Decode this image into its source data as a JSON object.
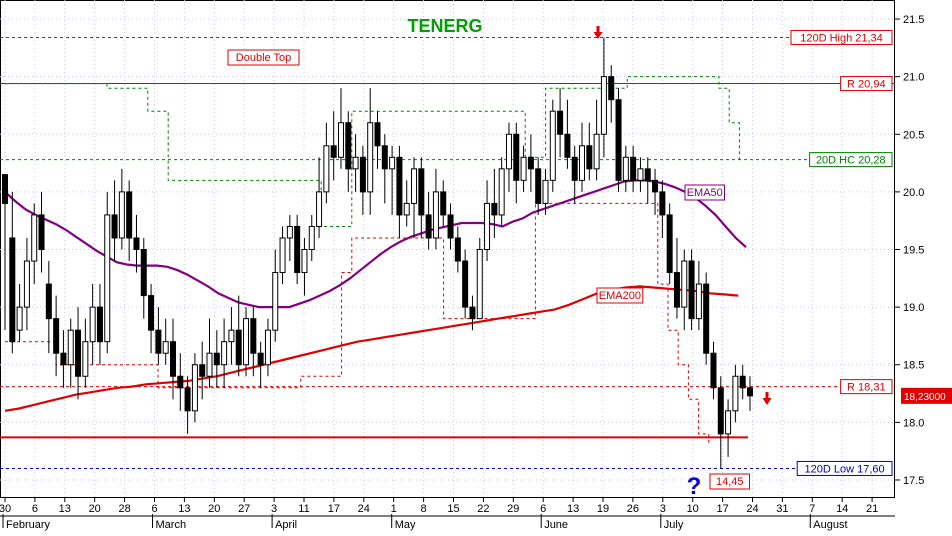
{
  "chart_data": {
    "type": "candlestick",
    "title": "TENERG",
    "ylim": [
      17.4,
      21.6
    ],
    "ytick_labels": [
      "17.5",
      "18.0",
      "18.5",
      "19.0",
      "19.5",
      "20.0",
      "20.5",
      "21.0",
      "21.5"
    ],
    "yticks": [
      17.5,
      18.0,
      18.5,
      19.0,
      19.5,
      20.0,
      20.5,
      21.0,
      21.5
    ],
    "x_day_labels": [
      "30",
      "6",
      "13",
      "20",
      "28",
      "6",
      "13",
      "20",
      "27",
      "3",
      "11",
      "17",
      "24",
      "1",
      "8",
      "15",
      "22",
      "29",
      "6",
      "13",
      "19",
      "26",
      "3",
      "10",
      "17",
      "24",
      "31",
      "7",
      "14",
      "21"
    ],
    "month_labels": [
      "February",
      "March",
      "April",
      "May",
      "June",
      "July",
      "August"
    ],
    "last_price_label": "18,23000",
    "candles": [
      [
        20.15,
        19.9,
        20.1,
        18.8
      ],
      [
        19.6,
        18.7,
        20.0,
        18.6
      ],
      [
        18.8,
        19.0,
        19.2,
        18.7
      ],
      [
        19.0,
        19.4,
        19.6,
        18.8
      ],
      [
        19.4,
        19.8,
        19.9,
        19.2
      ],
      [
        19.8,
        19.5,
        20.0,
        19.3
      ],
      [
        19.2,
        18.9,
        19.4,
        18.6
      ],
      [
        18.9,
        18.6,
        19.1,
        18.4
      ],
      [
        18.6,
        18.5,
        18.8,
        18.3
      ],
      [
        18.5,
        18.8,
        18.9,
        18.3
      ],
      [
        18.8,
        18.4,
        19.0,
        18.2
      ],
      [
        18.4,
        18.7,
        18.9,
        18.3
      ],
      [
        18.7,
        19.0,
        19.2,
        18.5
      ],
      [
        19.0,
        18.7,
        19.2,
        18.5
      ],
      [
        18.7,
        19.8,
        20.0,
        18.6
      ],
      [
        19.8,
        19.6,
        20.1,
        19.4
      ],
      [
        19.6,
        20.0,
        20.2,
        19.5
      ],
      [
        20.0,
        19.6,
        20.1,
        19.4
      ],
      [
        19.6,
        19.5,
        19.8,
        19.3
      ],
      [
        19.5,
        19.1,
        19.6,
        18.9
      ],
      [
        19.1,
        18.8,
        19.2,
        18.6
      ],
      [
        18.8,
        18.6,
        19.0,
        18.5
      ],
      [
        18.6,
        18.7,
        18.9,
        18.5
      ],
      [
        18.7,
        18.4,
        18.9,
        18.2
      ],
      [
        18.4,
        18.3,
        18.6,
        18.1
      ],
      [
        18.3,
        18.1,
        18.4,
        17.9
      ],
      [
        18.1,
        18.5,
        18.6,
        18.0
      ],
      [
        18.5,
        18.4,
        18.7,
        18.2
      ],
      [
        18.4,
        18.6,
        18.9,
        18.3
      ],
      [
        18.6,
        18.5,
        18.8,
        18.3
      ],
      [
        18.5,
        18.7,
        18.9,
        18.3
      ],
      [
        18.7,
        18.8,
        19.0,
        18.5
      ],
      [
        18.8,
        18.5,
        19.1,
        18.4
      ],
      [
        18.5,
        18.9,
        19.0,
        18.4
      ],
      [
        18.9,
        18.6,
        19.0,
        18.4
      ],
      [
        18.6,
        18.5,
        18.7,
        18.3
      ],
      [
        18.5,
        18.8,
        18.9,
        18.4
      ],
      [
        18.8,
        19.3,
        19.5,
        18.7
      ],
      [
        19.3,
        19.6,
        19.7,
        19.2
      ],
      [
        19.6,
        19.7,
        19.8,
        19.4
      ],
      [
        19.7,
        19.3,
        19.8,
        19.2
      ],
      [
        19.3,
        19.5,
        19.6,
        19.1
      ],
      [
        19.5,
        19.7,
        19.8,
        19.4
      ],
      [
        19.7,
        20.0,
        20.3,
        19.6
      ],
      [
        20.0,
        20.4,
        20.6,
        19.9
      ],
      [
        20.4,
        20.3,
        20.7,
        20.1
      ],
      [
        20.3,
        20.6,
        20.9,
        20.2
      ],
      [
        20.6,
        20.2,
        20.7,
        20.0
      ],
      [
        20.2,
        20.3,
        20.5,
        20.0
      ],
      [
        20.3,
        20.0,
        20.4,
        19.8
      ],
      [
        20.0,
        20.6,
        20.9,
        19.8
      ],
      [
        20.6,
        20.4,
        20.7,
        20.2
      ],
      [
        20.4,
        20.2,
        20.5,
        19.9
      ],
      [
        20.2,
        20.3,
        20.4,
        19.8
      ],
      [
        20.3,
        19.8,
        20.4,
        19.6
      ],
      [
        19.8,
        19.9,
        20.1,
        19.7
      ],
      [
        19.9,
        20.2,
        20.3,
        19.6
      ],
      [
        20.2,
        19.8,
        20.3,
        19.6
      ],
      [
        19.8,
        19.6,
        20.0,
        19.5
      ],
      [
        19.6,
        20.0,
        20.2,
        19.5
      ],
      [
        20.0,
        19.8,
        20.1,
        19.7
      ],
      [
        19.8,
        19.6,
        19.9,
        19.5
      ],
      [
        19.6,
        19.4,
        19.7,
        19.3
      ],
      [
        19.4,
        19.0,
        19.5,
        18.9
      ],
      [
        19.0,
        18.9,
        19.1,
        18.8
      ],
      [
        18.9,
        19.5,
        19.6,
        18.9
      ],
      [
        19.5,
        19.9,
        20.1,
        19.4
      ],
      [
        19.9,
        19.8,
        20.2,
        19.6
      ],
      [
        19.8,
        20.2,
        20.3,
        19.7
      ],
      [
        20.2,
        20.5,
        20.6,
        20.0
      ],
      [
        20.5,
        20.1,
        20.6,
        19.9
      ],
      [
        20.1,
        20.3,
        20.4,
        20.0
      ],
      [
        20.3,
        20.2,
        20.5,
        20.0
      ],
      [
        20.2,
        19.9,
        20.3,
        19.8
      ],
      [
        19.9,
        20.1,
        20.2,
        19.8
      ],
      [
        20.1,
        20.7,
        20.8,
        20.0
      ],
      [
        20.7,
        20.5,
        20.9,
        20.3
      ],
      [
        20.5,
        20.3,
        20.8,
        20.2
      ],
      [
        20.3,
        20.1,
        20.4,
        19.9
      ],
      [
        20.1,
        20.4,
        20.6,
        20.0
      ],
      [
        20.4,
        20.2,
        20.6,
        20.1
      ],
      [
        20.2,
        20.5,
        20.8,
        20.1
      ],
      [
        20.5,
        21.0,
        21.34,
        20.3
      ],
      [
        21.0,
        20.8,
        21.1,
        20.6
      ],
      [
        20.8,
        20.1,
        20.9,
        20.0
      ],
      [
        20.1,
        20.3,
        20.4,
        20.0
      ],
      [
        20.3,
        20.1,
        20.4,
        20.0
      ],
      [
        20.1,
        20.2,
        20.3,
        20.0
      ],
      [
        20.2,
        20.1,
        20.3,
        19.9
      ],
      [
        20.1,
        20.0,
        20.2,
        19.8
      ],
      [
        20.0,
        19.8,
        20.1,
        19.6
      ],
      [
        19.8,
        19.3,
        19.9,
        19.2
      ],
      [
        19.3,
        19.0,
        19.6,
        18.9
      ],
      [
        19.0,
        19.4,
        19.5,
        18.8
      ],
      [
        19.4,
        18.9,
        19.5,
        18.8
      ],
      [
        18.9,
        19.2,
        19.4,
        18.8
      ],
      [
        19.2,
        18.6,
        19.3,
        18.5
      ],
      [
        18.6,
        18.3,
        18.7,
        18.2
      ],
      [
        18.3,
        17.9,
        18.4,
        17.6
      ],
      [
        17.9,
        18.1,
        18.2,
        17.7
      ],
      [
        18.1,
        18.4,
        18.5,
        18.0
      ],
      [
        18.4,
        18.3,
        18.5,
        18.2
      ],
      [
        18.3,
        18.23,
        18.4,
        18.1
      ]
    ],
    "series": [
      {
        "name": "EMA50",
        "color": "#800080",
        "y": [
          20.0,
          19.92,
          19.85,
          19.8,
          19.76,
          19.72,
          19.67,
          19.61,
          19.55,
          19.49,
          19.44,
          19.39,
          19.37,
          19.36,
          19.36,
          19.36,
          19.35,
          19.32,
          19.28,
          19.23,
          19.18,
          19.12,
          19.08,
          19.04,
          19.02,
          19.0,
          19.0,
          19.0,
          19.0,
          19.03,
          19.06,
          19.1,
          19.14,
          19.19,
          19.25,
          19.32,
          19.39,
          19.46,
          19.52,
          19.57,
          19.61,
          19.64,
          19.67,
          19.69,
          19.71,
          19.73,
          19.73,
          19.73,
          19.72,
          19.7,
          19.74,
          19.77,
          19.82,
          19.85,
          19.88,
          19.91,
          19.94,
          19.97,
          20.0,
          20.03,
          20.06,
          20.09,
          20.1,
          20.1,
          20.09,
          20.07,
          20.04,
          20.0,
          19.95,
          19.88,
          19.8,
          19.7,
          19.6,
          19.52
        ]
      },
      {
        "name": "EMA200",
        "color": "#e00000",
        "y": [
          18.1,
          18.12,
          18.15,
          18.18,
          18.21,
          18.24,
          18.26,
          18.28,
          18.3,
          18.31,
          18.33,
          18.34,
          18.35,
          18.36,
          18.38,
          18.4,
          18.43,
          18.46,
          18.49,
          18.52,
          18.55,
          18.58,
          18.61,
          18.64,
          18.67,
          18.7,
          18.72,
          18.74,
          18.76,
          18.78,
          18.8,
          18.82,
          18.84,
          18.86,
          18.88,
          18.9,
          18.92,
          18.94,
          18.96,
          18.98,
          19.02,
          19.07,
          19.12,
          19.15,
          19.17,
          19.18,
          19.17,
          19.16,
          19.15,
          19.14,
          19.12,
          19.11,
          19.1
        ]
      },
      {
        "name": "green-highest",
        "color": "#008000",
        "y": [
          20.94,
          20.94,
          20.94,
          20.94,
          20.94,
          20.94,
          20.94,
          20.94,
          20.94,
          20.94,
          20.9,
          20.9,
          20.9,
          20.9,
          20.7,
          20.7,
          20.1,
          20.1,
          20.1,
          20.1,
          20.1,
          20.1,
          20.1,
          20.1,
          20.1,
          20.1,
          20.1,
          20.1,
          20.1,
          20.1,
          20.1,
          19.7,
          19.7,
          19.7,
          20.7,
          20.7,
          20.7,
          20.7,
          20.7,
          20.7,
          20.7,
          20.7,
          20.7,
          20.7,
          20.7,
          20.7,
          20.7,
          20.7,
          20.7,
          20.7,
          20.7,
          20.3,
          20.3,
          20.9,
          20.9,
          20.9,
          20.9,
          20.9,
          20.9,
          20.9,
          20.9,
          21.0,
          21.0,
          21.0,
          21.0,
          21.0,
          21.0,
          21.0,
          21.0,
          21.0,
          20.9,
          20.6,
          20.28
        ]
      },
      {
        "name": "red-lowest",
        "color": "#e00000",
        "y": [
          18.7,
          18.7,
          18.7,
          18.7,
          18.7,
          18.5,
          18.5,
          18.5,
          18.5,
          18.5,
          18.5,
          18.5,
          18.5,
          18.5,
          18.5,
          18.3,
          18.3,
          18.3,
          18.3,
          18.3,
          18.3,
          18.3,
          18.3,
          18.3,
          18.3,
          18.3,
          18.3,
          18.3,
          18.3,
          18.4,
          18.4,
          18.4,
          18.4,
          19.3,
          19.6,
          19.6,
          19.6,
          19.6,
          19.6,
          19.6,
          19.6,
          19.6,
          19.6,
          18.9,
          18.9,
          18.9,
          18.9,
          18.9,
          18.9,
          18.9,
          18.9,
          18.9,
          19.9,
          19.9,
          19.9,
          19.9,
          19.9,
          19.9,
          19.9,
          19.9,
          19.9,
          19.9,
          19.9,
          19.9,
          19.2,
          18.8,
          18.5,
          18.2,
          17.9,
          17.8
        ]
      }
    ],
    "hlines": [
      {
        "label": "120D High 21,34",
        "value": 21.34,
        "color": "#e00000",
        "style": "dashed"
      },
      {
        "label": "R 20,94",
        "value": 20.94,
        "color": "#e00000",
        "style": "solid"
      },
      {
        "label": "20D HC 20,28",
        "value": 20.28,
        "color": "#008000",
        "style": "dashed"
      },
      {
        "label": "R 18,31",
        "value": 18.31,
        "color": "#e00000",
        "style": "dashed"
      },
      {
        "label": "",
        "value": 17.87,
        "color": "#e00000",
        "style": "solid-thick"
      },
      {
        "label": "120D Low 17,60",
        "value": 17.6,
        "color": "#0000c0",
        "style": "dashed"
      }
    ],
    "annotations": [
      {
        "text": "Double Top",
        "color": "#e00000"
      },
      {
        "text": "EMA50",
        "color": "#800080"
      },
      {
        "text": "EMA200",
        "color": "#e00000"
      },
      {
        "text": "14,45",
        "color": "#e00000"
      },
      {
        "text": "?",
        "color": "#0000e0"
      }
    ]
  }
}
